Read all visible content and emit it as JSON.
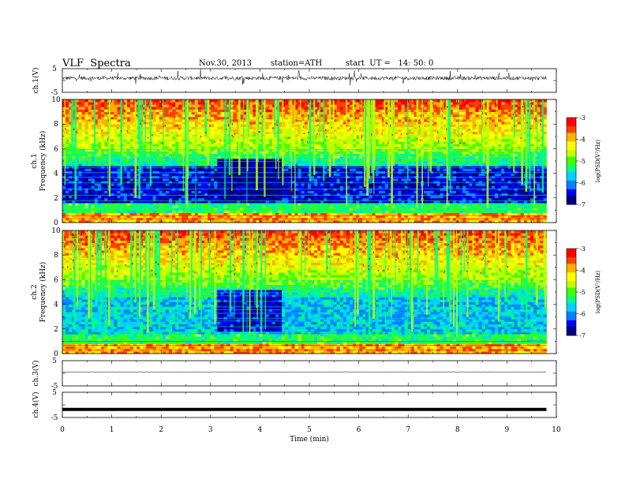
{
  "header": {
    "title": "VLF  Spectra",
    "date": "Nov.30, 2013",
    "station": "station=ATH",
    "start": "start  UT =   14: 50: 0"
  },
  "colors": {
    "palette": [
      "#000080",
      "#0000ff",
      "#0080ff",
      "#00d0ff",
      "#00ff80",
      "#40ff00",
      "#c0ff00",
      "#ffff00",
      "#ffb000",
      "#ff4000",
      "#ff0000",
      "#ffd0d0"
    ]
  },
  "chart_data": [
    {
      "type": "line",
      "panel": "ch1-waveform",
      "ylabel": "ch.1(V)",
      "ylim": [
        -5,
        5
      ],
      "yticks": [
        "5",
        "-5"
      ],
      "x": [
        0,
        10
      ],
      "note_values": "noise-like waveform around ~1 V with spikes"
    },
    {
      "type": "heatmap",
      "panel": "ch1-spectrogram",
      "ylabel_top": "ch.1",
      "ylabel": "Frequency  (kHz)",
      "ylim": [
        0,
        10
      ],
      "yticks": [
        "0",
        "2",
        "4",
        "6",
        "8",
        "10"
      ],
      "xlim": [
        0,
        10
      ],
      "colorbar": {
        "label": "log(PSD(V²/Hz)",
        "ticks": [
          "-3",
          "-4",
          "-5",
          "-6",
          "-7"
        ],
        "range": [
          -7,
          -3
        ]
      }
    },
    {
      "type": "heatmap",
      "panel": "ch2-spectrogram",
      "ylabel_top": "ch.2",
      "ylabel": "Frequency  (kHz)",
      "ylim": [
        0,
        10
      ],
      "yticks": [
        "0",
        "2",
        "4",
        "6",
        "8",
        "10"
      ],
      "xlim": [
        0,
        10
      ],
      "colorbar": {
        "label": "log(PSD(V²/Hz)",
        "ticks": [
          "-3",
          "-4",
          "-5",
          "-6",
          "-7"
        ],
        "range": [
          -7,
          -3
        ]
      }
    },
    {
      "type": "line",
      "panel": "ch3-waveform",
      "ylabel": "ch.3(V)",
      "ylim": [
        -5,
        5
      ],
      "yticks": [
        "5",
        "-5"
      ]
    },
    {
      "type": "line",
      "panel": "ch4-waveform",
      "ylabel": "ch.4(V)",
      "ylim": [
        -5,
        5
      ],
      "yticks": [
        "5",
        "-5"
      ],
      "level": -1.8
    },
    {
      "type": "axis",
      "xlabel": "Time  (min)",
      "xlim": [
        0,
        10
      ],
      "xticks": [
        "0",
        "1",
        "2",
        "3",
        "4",
        "5",
        "6",
        "7",
        "8",
        "9",
        "10"
      ]
    }
  ]
}
